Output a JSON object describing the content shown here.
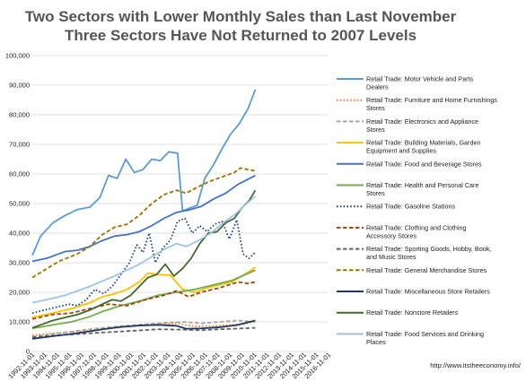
{
  "chart_data": {
    "type": "line",
    "title": "Two Sectors with Lower Monthly Sales than Last November",
    "subtitle": "Three Sectors Have Not Returned to 2007 Levels",
    "source": "http://www.itstheeconomy.info/",
    "ylim": [
      0,
      100000
    ],
    "yticks": [
      0,
      10000,
      20000,
      30000,
      40000,
      50000,
      60000,
      70000,
      80000,
      90000,
      100000
    ],
    "ytick_labels": [
      "0",
      "10,000",
      "20,000",
      "30,000",
      "40,000",
      "50,000",
      "60,000",
      "70,000",
      "80,000",
      "90,000",
      "100,000"
    ],
    "xrange": [
      1992.83,
      2016.83
    ],
    "xtick_labels": [
      "1992-11-01",
      "1993-11-01",
      "1994-11-01",
      "1995-11-01",
      "1996-11-01",
      "1997-11-01",
      "1998-11-01",
      "1999-11-01",
      "2000-11-01",
      "2001-11-01",
      "2002-11-01",
      "2003-11-01",
      "2004-11-01",
      "2005-11-01",
      "2006-11-01",
      "2007-11-01",
      "2008-11-01",
      "2009-11-01",
      "2010-11-01",
      "2011-11-01",
      "2012-11-01",
      "2013-11-01",
      "2014-11-01",
      "2015-11-01",
      "2016-11-01"
    ],
    "legend_position": "right",
    "grid": true,
    "series": [
      {
        "name": "Retail Trade: Motor Vehicle and Parts Dealers",
        "color": "#5b9bd5",
        "dash": "solid",
        "points": [
          [
            1992.83,
            32500
          ],
          [
            1993.5,
            39000
          ],
          [
            1994.5,
            43500
          ],
          [
            1995.5,
            46000
          ],
          [
            1996.5,
            48000
          ],
          [
            1997.5,
            48800
          ],
          [
            1998.3,
            52000
          ],
          [
            1999.0,
            59500
          ],
          [
            1999.7,
            58500
          ],
          [
            2000.4,
            65000
          ],
          [
            2001.1,
            60500
          ],
          [
            2001.8,
            61500
          ],
          [
            2002.5,
            65000
          ],
          [
            2003.2,
            64500
          ],
          [
            2003.9,
            67500
          ],
          [
            2004.6,
            67000
          ],
          [
            2005.0,
            47500
          ],
          [
            2005.6,
            48500
          ],
          [
            2006.2,
            49500
          ],
          [
            2006.8,
            58500
          ],
          [
            2007.5,
            63000
          ],
          [
            2008.2,
            68500
          ],
          [
            2008.9,
            73500
          ],
          [
            2009.6,
            77000
          ],
          [
            2010.3,
            82000
          ],
          [
            2010.9,
            88500
          ]
        ]
      },
      {
        "name": "Retail Trade: Furniture and Home Furnishings Stores",
        "color": "#ed7d31",
        "dash": "dot",
        "points": [
          [
            1992.83,
            5500
          ],
          [
            1995,
            6300
          ],
          [
            1998,
            7300
          ],
          [
            2000,
            8200
          ],
          [
            2003,
            9200
          ],
          [
            2004.5,
            9600
          ],
          [
            2005.2,
            9000
          ],
          [
            2006,
            8500
          ],
          [
            2008,
            8700
          ],
          [
            2010,
            9300
          ],
          [
            2010.9,
            10200
          ]
        ]
      },
      {
        "name": "Retail Trade: Electronics and Appliance Stores",
        "color": "#a5a5a5",
        "dash": "dash",
        "points": [
          [
            1992.83,
            5000
          ],
          [
            1995,
            6200
          ],
          [
            1998,
            7800
          ],
          [
            2000,
            8600
          ],
          [
            2002,
            9200
          ],
          [
            2004,
            9800
          ],
          [
            2005.2,
            10000
          ],
          [
            2006.5,
            9500
          ],
          [
            2008,
            10000
          ],
          [
            2009.5,
            10500
          ],
          [
            2010.9,
            10000
          ]
        ]
      },
      {
        "name": "Retail Trade: Building Materials, Garden Equipment and Supplies",
        "color": "#ffc000",
        "dash": "solid",
        "points": [
          [
            1992.83,
            11500
          ],
          [
            1994.5,
            13000
          ],
          [
            1996,
            14500
          ],
          [
            1997.5,
            16500
          ],
          [
            1998.5,
            18500
          ],
          [
            1999.5,
            19500
          ],
          [
            2000.5,
            21000
          ],
          [
            2001.5,
            23500
          ],
          [
            2002.2,
            26500
          ],
          [
            2003,
            26000
          ],
          [
            2004,
            25800
          ],
          [
            2005,
            21000
          ],
          [
            2006,
            20000
          ],
          [
            2007,
            21500
          ],
          [
            2008,
            22500
          ],
          [
            2009,
            23500
          ],
          [
            2010,
            26000
          ],
          [
            2010.9,
            28500
          ]
        ]
      },
      {
        "name": "Retail Trade: Food and Beverage Stores",
        "color": "#4472c4",
        "dash": "solid",
        "points": [
          [
            1992.83,
            30500
          ],
          [
            1994,
            31500
          ],
          [
            1995.5,
            33800
          ],
          [
            1996.5,
            34200
          ],
          [
            1997.5,
            35500
          ],
          [
            1998.5,
            37500
          ],
          [
            1999.5,
            39000
          ],
          [
            2000.5,
            39500
          ],
          [
            2001.5,
            40500
          ],
          [
            2002.5,
            42500
          ],
          [
            2003.5,
            45000
          ],
          [
            2004.5,
            47000
          ],
          [
            2005.5,
            47800
          ],
          [
            2006.5,
            49000
          ],
          [
            2007.5,
            51500
          ],
          [
            2008.5,
            53500
          ],
          [
            2009.5,
            56500
          ],
          [
            2010.9,
            59500
          ]
        ]
      },
      {
        "name": "Retail Trade: Health and Personal Care Stores",
        "color": "#70ad47",
        "dash": "solid",
        "points": [
          [
            1992.83,
            7800
          ],
          [
            1994.5,
            9000
          ],
          [
            1996,
            10000
          ],
          [
            1997.5,
            11800
          ],
          [
            1998.5,
            13500
          ],
          [
            2000,
            15500
          ],
          [
            2001.5,
            17000
          ],
          [
            2003,
            19000
          ],
          [
            2004.5,
            20000
          ],
          [
            2006,
            21000
          ],
          [
            2007.5,
            22500
          ],
          [
            2009,
            24000
          ],
          [
            2010.9,
            27500
          ]
        ]
      },
      {
        "name": "Retail Trade: Gasoline Stations",
        "color": "#264478",
        "dash": "dot",
        "points": [
          [
            1992.83,
            13000
          ],
          [
            1993.8,
            14000
          ],
          [
            1994.8,
            15000
          ],
          [
            1995.8,
            16000
          ],
          [
            1996.5,
            15500
          ],
          [
            1997.2,
            17500
          ],
          [
            1997.9,
            21000
          ],
          [
            1998.6,
            19500
          ],
          [
            1999.3,
            22000
          ],
          [
            2000.0,
            26000
          ],
          [
            2000.7,
            30000
          ],
          [
            2001.3,
            36000
          ],
          [
            2001.8,
            33500
          ],
          [
            2002.3,
            40000
          ],
          [
            2002.8,
            30000
          ],
          [
            2003.4,
            35000
          ],
          [
            2004.0,
            37500
          ],
          [
            2004.6,
            44000
          ],
          [
            2005.2,
            45000
          ],
          [
            2005.8,
            40000
          ],
          [
            2006.4,
            42500
          ],
          [
            2007.0,
            40500
          ],
          [
            2007.6,
            43000
          ],
          [
            2008.2,
            44000
          ],
          [
            2008.8,
            38000
          ],
          [
            2009.4,
            44500
          ],
          [
            2009.9,
            33000
          ],
          [
            2010.4,
            31500
          ],
          [
            2010.9,
            33500
          ]
        ]
      },
      {
        "name": "Retail Trade: Clothing and Clothing Accessory Stores",
        "color": "#9e480e",
        "dash": "dash",
        "points": [
          [
            1992.83,
            11000
          ],
          [
            1994.5,
            12500
          ],
          [
            1996,
            13000
          ],
          [
            1997.5,
            14500
          ],
          [
            1999,
            16000
          ],
          [
            2000.5,
            15500
          ],
          [
            2002,
            17500
          ],
          [
            2003.5,
            19000
          ],
          [
            2004.5,
            20500
          ],
          [
            2005.5,
            18500
          ],
          [
            2006.5,
            20000
          ],
          [
            2008,
            21500
          ],
          [
            2009.5,
            23500
          ],
          [
            2010.3,
            23000
          ],
          [
            2010.9,
            23500
          ]
        ]
      },
      {
        "name": "Retail Trade: Sporting Goods, Hobby, Book, and Music Stores",
        "color": "#636363",
        "dash": "dash",
        "points": [
          [
            1992.83,
            4800
          ],
          [
            1995,
            5500
          ],
          [
            1998,
            6300
          ],
          [
            2001,
            7000
          ],
          [
            2003,
            7500
          ],
          [
            2005,
            7400
          ],
          [
            2006.5,
            7200
          ],
          [
            2008,
            7500
          ],
          [
            2010.9,
            8000
          ]
        ]
      },
      {
        "name": "Retail Trade: General Merchandise Stores",
        "color": "#997300",
        "dash": "dash",
        "points": [
          [
            1992.83,
            25000
          ],
          [
            1994,
            28000
          ],
          [
            1995,
            30500
          ],
          [
            1996.5,
            33000
          ],
          [
            1997.5,
            35500
          ],
          [
            1998.5,
            39500
          ],
          [
            1999.5,
            42000
          ],
          [
            2000.5,
            43000
          ],
          [
            2001.5,
            46000
          ],
          [
            2002.5,
            50000
          ],
          [
            2003.5,
            53000
          ],
          [
            2004.5,
            54500
          ],
          [
            2005.3,
            53500
          ],
          [
            2006.2,
            55500
          ],
          [
            2007.2,
            57500
          ],
          [
            2008.2,
            59000
          ],
          [
            2009.2,
            60500
          ],
          [
            2009.7,
            62000
          ],
          [
            2010.3,
            61500
          ],
          [
            2010.9,
            61000
          ]
        ]
      },
      {
        "name": "Retail Trade: Miscellaneous Store Retailers",
        "color": "#1f3864",
        "dash": "solid",
        "points": [
          [
            1992.83,
            4300
          ],
          [
            1994.5,
            5200
          ],
          [
            1996.5,
            6200
          ],
          [
            1998.5,
            7500
          ],
          [
            2000,
            8300
          ],
          [
            2001.5,
            8800
          ],
          [
            2003,
            9000
          ],
          [
            2004.5,
            8700
          ],
          [
            2005.3,
            7700
          ],
          [
            2006.5,
            7800
          ],
          [
            2008,
            8200
          ],
          [
            2009.5,
            9000
          ],
          [
            2010.9,
            10500
          ]
        ]
      },
      {
        "name": "Retail Trade: Nonstore Retailers",
        "color": "#43682b",
        "dash": "solid",
        "points": [
          [
            1992.83,
            8000
          ],
          [
            1993.5,
            9000
          ],
          [
            1994.5,
            10500
          ],
          [
            1995.5,
            11500
          ],
          [
            1996.5,
            12500
          ],
          [
            1997.5,
            14000
          ],
          [
            1998.5,
            16000
          ],
          [
            1999.3,
            17500
          ],
          [
            2000.0,
            17000
          ],
          [
            2000.8,
            19000
          ],
          [
            2001.5,
            22000
          ],
          [
            2002.2,
            25000
          ],
          [
            2002.9,
            26000
          ],
          [
            2003.6,
            29500
          ],
          [
            2004.3,
            25500
          ],
          [
            2005.0,
            28000
          ],
          [
            2005.7,
            31500
          ],
          [
            2006.4,
            36500
          ],
          [
            2007.1,
            40000
          ],
          [
            2007.8,
            40500
          ],
          [
            2008.5,
            43500
          ],
          [
            2009.2,
            45000
          ],
          [
            2009.8,
            48500
          ],
          [
            2010.4,
            51000
          ],
          [
            2010.9,
            54500
          ]
        ]
      },
      {
        "name": "Retail Trade: Food Services and Drinking Places",
        "color": "#9dc3e6",
        "dash": "solid",
        "points": [
          [
            1992.83,
            16500
          ],
          [
            1994,
            17500
          ],
          [
            1995.5,
            19000
          ],
          [
            1996.5,
            20500
          ],
          [
            1997.5,
            22000
          ],
          [
            1998.5,
            23800
          ],
          [
            1999.5,
            25500
          ],
          [
            2000.5,
            27500
          ],
          [
            2001.5,
            29500
          ],
          [
            2002.5,
            32000
          ],
          [
            2003.5,
            34500
          ],
          [
            2004.5,
            36500
          ],
          [
            2005.3,
            35500
          ],
          [
            2006.3,
            37500
          ],
          [
            2007.3,
            40000
          ],
          [
            2008.3,
            43500
          ],
          [
            2009.3,
            46500
          ],
          [
            2010.2,
            50000
          ],
          [
            2010.9,
            52500
          ]
        ]
      }
    ]
  }
}
